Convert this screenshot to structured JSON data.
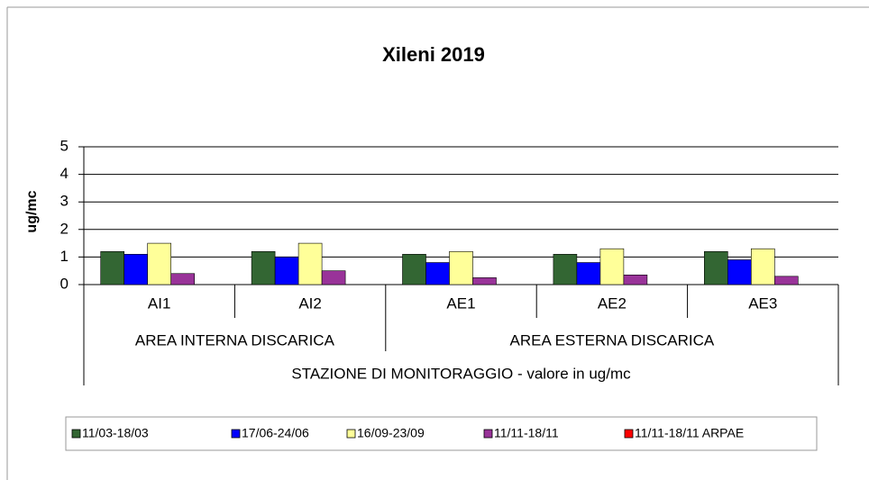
{
  "chart_data": {
    "type": "bar",
    "title": "Xileni 2019",
    "y_label": "ug/mc",
    "x_label": "STAZIONE DI MONITORAGGIO - valore in ug/mc",
    "categories": [
      "AI1",
      "AI2",
      "AE1",
      "AE2",
      "AE3"
    ],
    "groups": [
      {
        "label": "AREA INTERNA DISCARICA",
        "size": 2
      },
      {
        "label": "AREA ESTERNA DISCARICA",
        "size": 3
      }
    ],
    "series": [
      {
        "name": "11/03-18/03",
        "color": "#336633",
        "values": [
          1.2,
          1.2,
          1.1,
          1.1,
          1.2
        ]
      },
      {
        "name": "17/06-24/06",
        "color": "#0000ff",
        "values": [
          1.1,
          1.0,
          0.8,
          0.8,
          0.9
        ]
      },
      {
        "name": "16/09-23/09",
        "color": "#ffff99",
        "values": [
          1.5,
          1.5,
          1.2,
          1.3,
          1.3
        ]
      },
      {
        "name": "11/11-18/11",
        "color": "#993399",
        "values": [
          0.4,
          0.5,
          0.25,
          0.35,
          0.3
        ]
      },
      {
        "name": "11/11-18/11 ARPAE",
        "color": "#ff0000",
        "values": [
          null,
          null,
          null,
          null,
          null
        ]
      }
    ],
    "ylim": [
      0,
      5
    ],
    "yticks": [
      0,
      1,
      2,
      3,
      4,
      5
    ],
    "grid": true,
    "legend": "bottom"
  }
}
